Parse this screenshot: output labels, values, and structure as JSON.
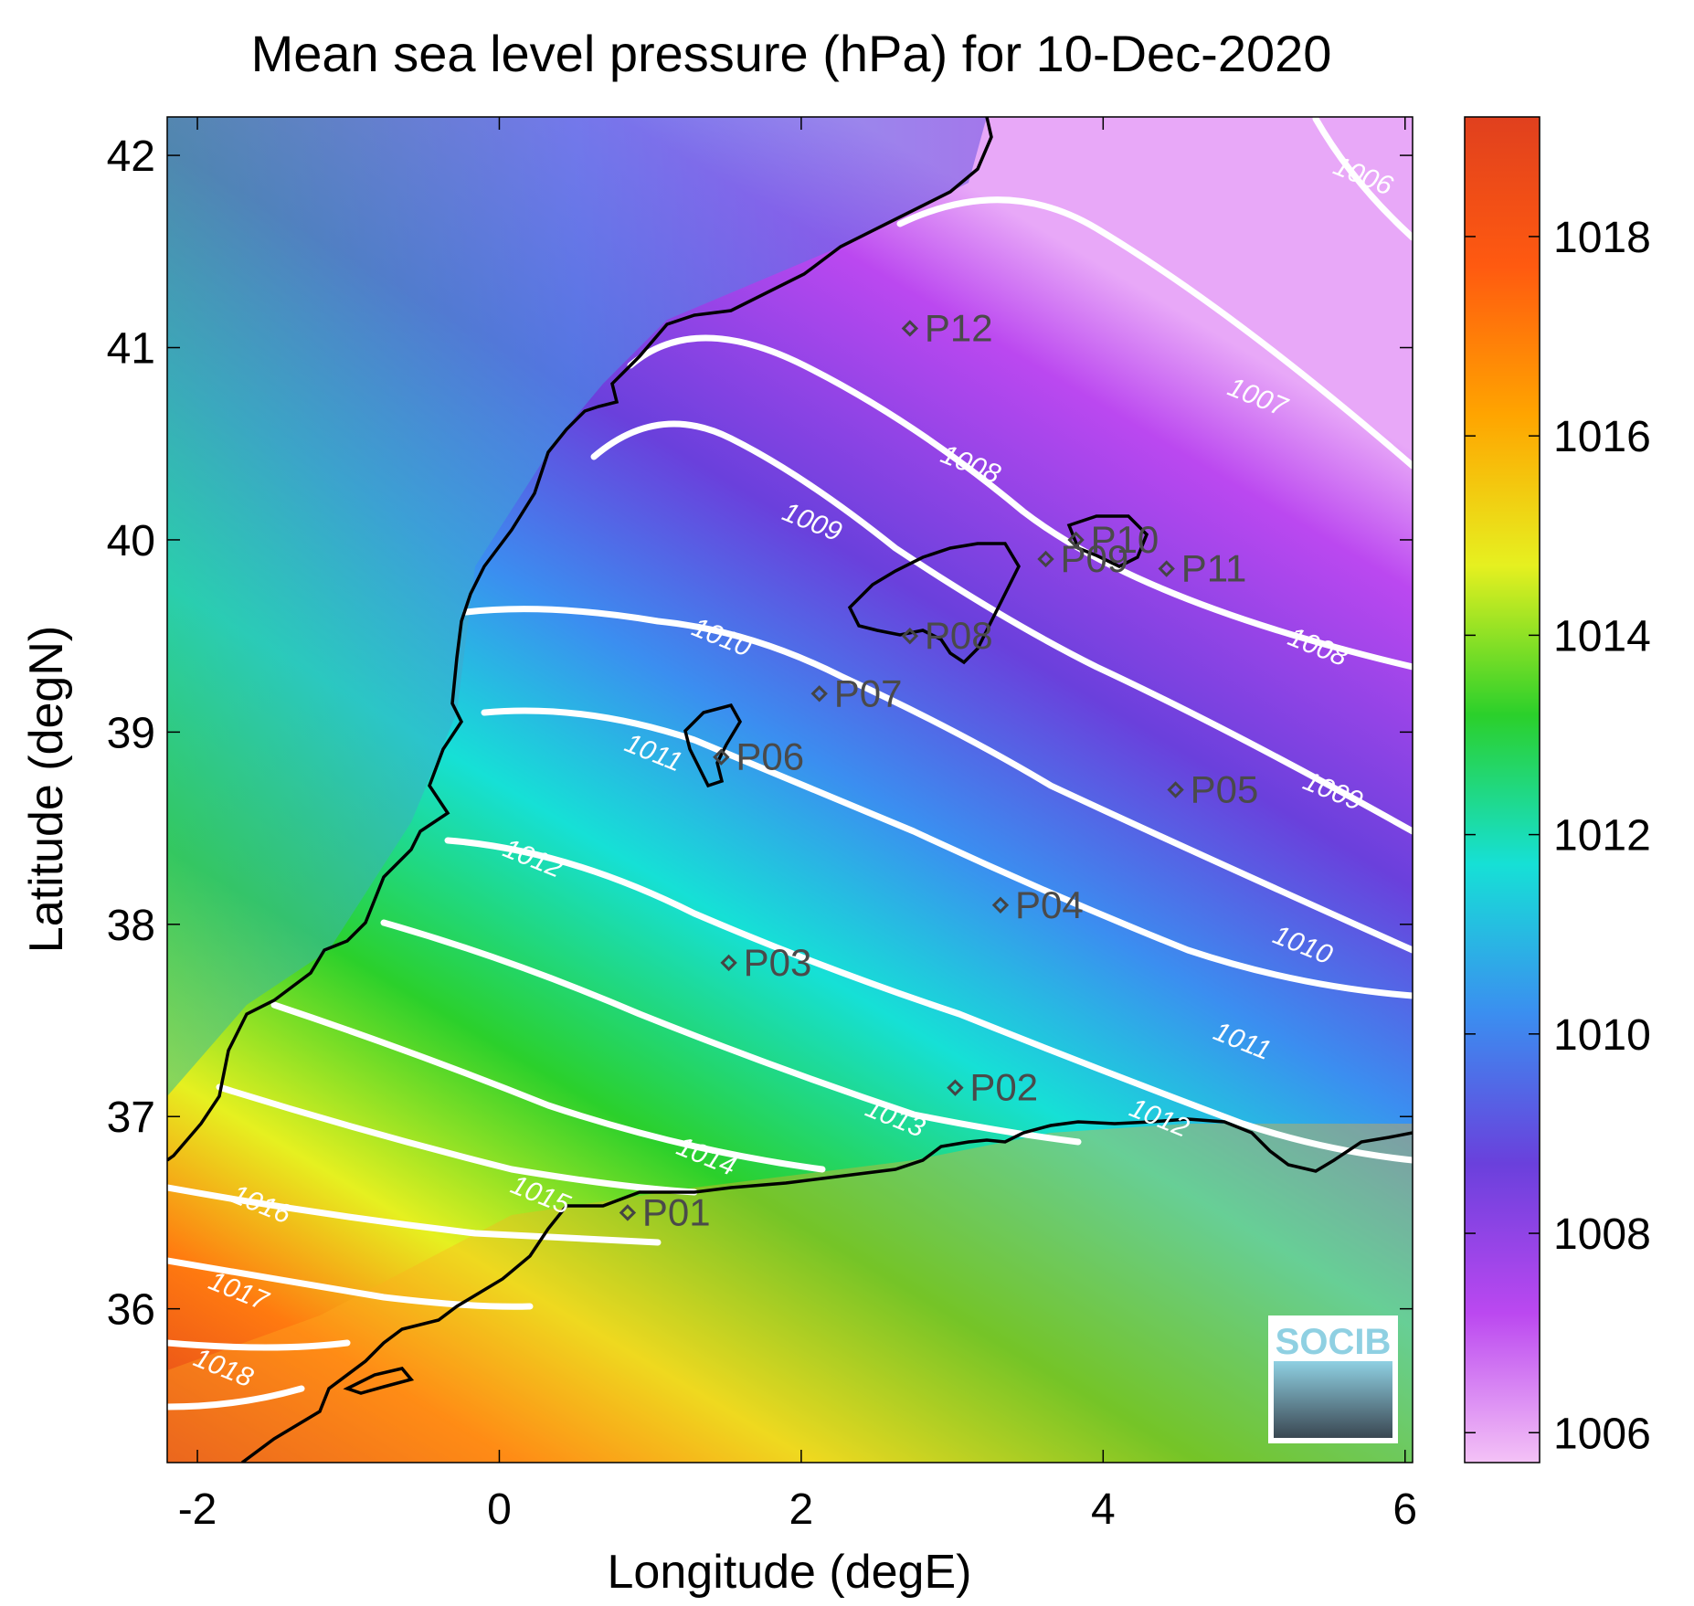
{
  "map": {
    "title": "Mean sea level pressure (hPa) for 10-Dec-2020",
    "xlabel": "Longitude (degE)",
    "ylabel": "Latitude (degN)",
    "xlim": [
      -2.2,
      6.05
    ],
    "ylim": [
      35.2,
      42.2
    ],
    "xticks": [
      -2,
      0,
      2,
      4,
      6
    ],
    "yticks": [
      36,
      37,
      38,
      39,
      40,
      41,
      42
    ],
    "colorbar": {
      "range": [
        1005.7,
        1019.2
      ],
      "ticks": [
        1006,
        1008,
        1010,
        1012,
        1014,
        1016,
        1018
      ],
      "colors": [
        "#f4c2f6",
        "#bb48f0",
        "#6a40dc",
        "#3b8ef0",
        "#16e0d6",
        "#2bd02b",
        "#e6f020",
        "#ffa500",
        "#ff5a10",
        "#e0401e"
      ]
    },
    "contour_labels": [
      {
        "text": "1006",
        "lon": 5.7,
        "lat": 41.85
      },
      {
        "text": "1007",
        "lon": 5.0,
        "lat": 40.7
      },
      {
        "text": "1008",
        "lon": 3.1,
        "lat": 40.35
      },
      {
        "text": "1008",
        "lon": 5.4,
        "lat": 39.4
      },
      {
        "text": "1009",
        "lon": 2.05,
        "lat": 40.05
      },
      {
        "text": "1009",
        "lon": 5.5,
        "lat": 38.65
      },
      {
        "text": "1010",
        "lon": 1.45,
        "lat": 39.45
      },
      {
        "text": "1010",
        "lon": 5.3,
        "lat": 37.85
      },
      {
        "text": "1011",
        "lon": 1.0,
        "lat": 38.85
      },
      {
        "text": "1011",
        "lon": 4.9,
        "lat": 37.35
      },
      {
        "text": "1012",
        "lon": 0.2,
        "lat": 38.3
      },
      {
        "text": "1012",
        "lon": 4.35,
        "lat": 36.95
      },
      {
        "text": "1013",
        "lon": 2.6,
        "lat": 36.95
      },
      {
        "text": "1014",
        "lon": 1.35,
        "lat": 36.75
      },
      {
        "text": "1015",
        "lon": 0.25,
        "lat": 36.55
      },
      {
        "text": "1016",
        "lon": -1.6,
        "lat": 36.5
      },
      {
        "text": "1017",
        "lon": -1.75,
        "lat": 36.05
      },
      {
        "text": "1018",
        "lon": -1.85,
        "lat": 35.65
      }
    ],
    "stations": [
      {
        "name": "P01",
        "lon": 0.85,
        "lat": 36.5
      },
      {
        "name": "P02",
        "lon": 3.02,
        "lat": 37.15
      },
      {
        "name": "P03",
        "lon": 1.52,
        "lat": 37.8
      },
      {
        "name": "P04",
        "lon": 3.32,
        "lat": 38.1
      },
      {
        "name": "P05",
        "lon": 4.48,
        "lat": 38.7
      },
      {
        "name": "P06",
        "lon": 1.47,
        "lat": 38.87
      },
      {
        "name": "P07",
        "lon": 2.12,
        "lat": 39.2
      },
      {
        "name": "P08",
        "lon": 2.72,
        "lat": 39.5
      },
      {
        "name": "P09",
        "lon": 3.62,
        "lat": 39.9
      },
      {
        "name": "P10",
        "lon": 3.82,
        "lat": 40.0
      },
      {
        "name": "P11",
        "lon": 4.42,
        "lat": 39.85
      },
      {
        "name": "P12",
        "lon": 2.72,
        "lat": 41.1
      }
    ],
    "logo": "SOCIB"
  }
}
